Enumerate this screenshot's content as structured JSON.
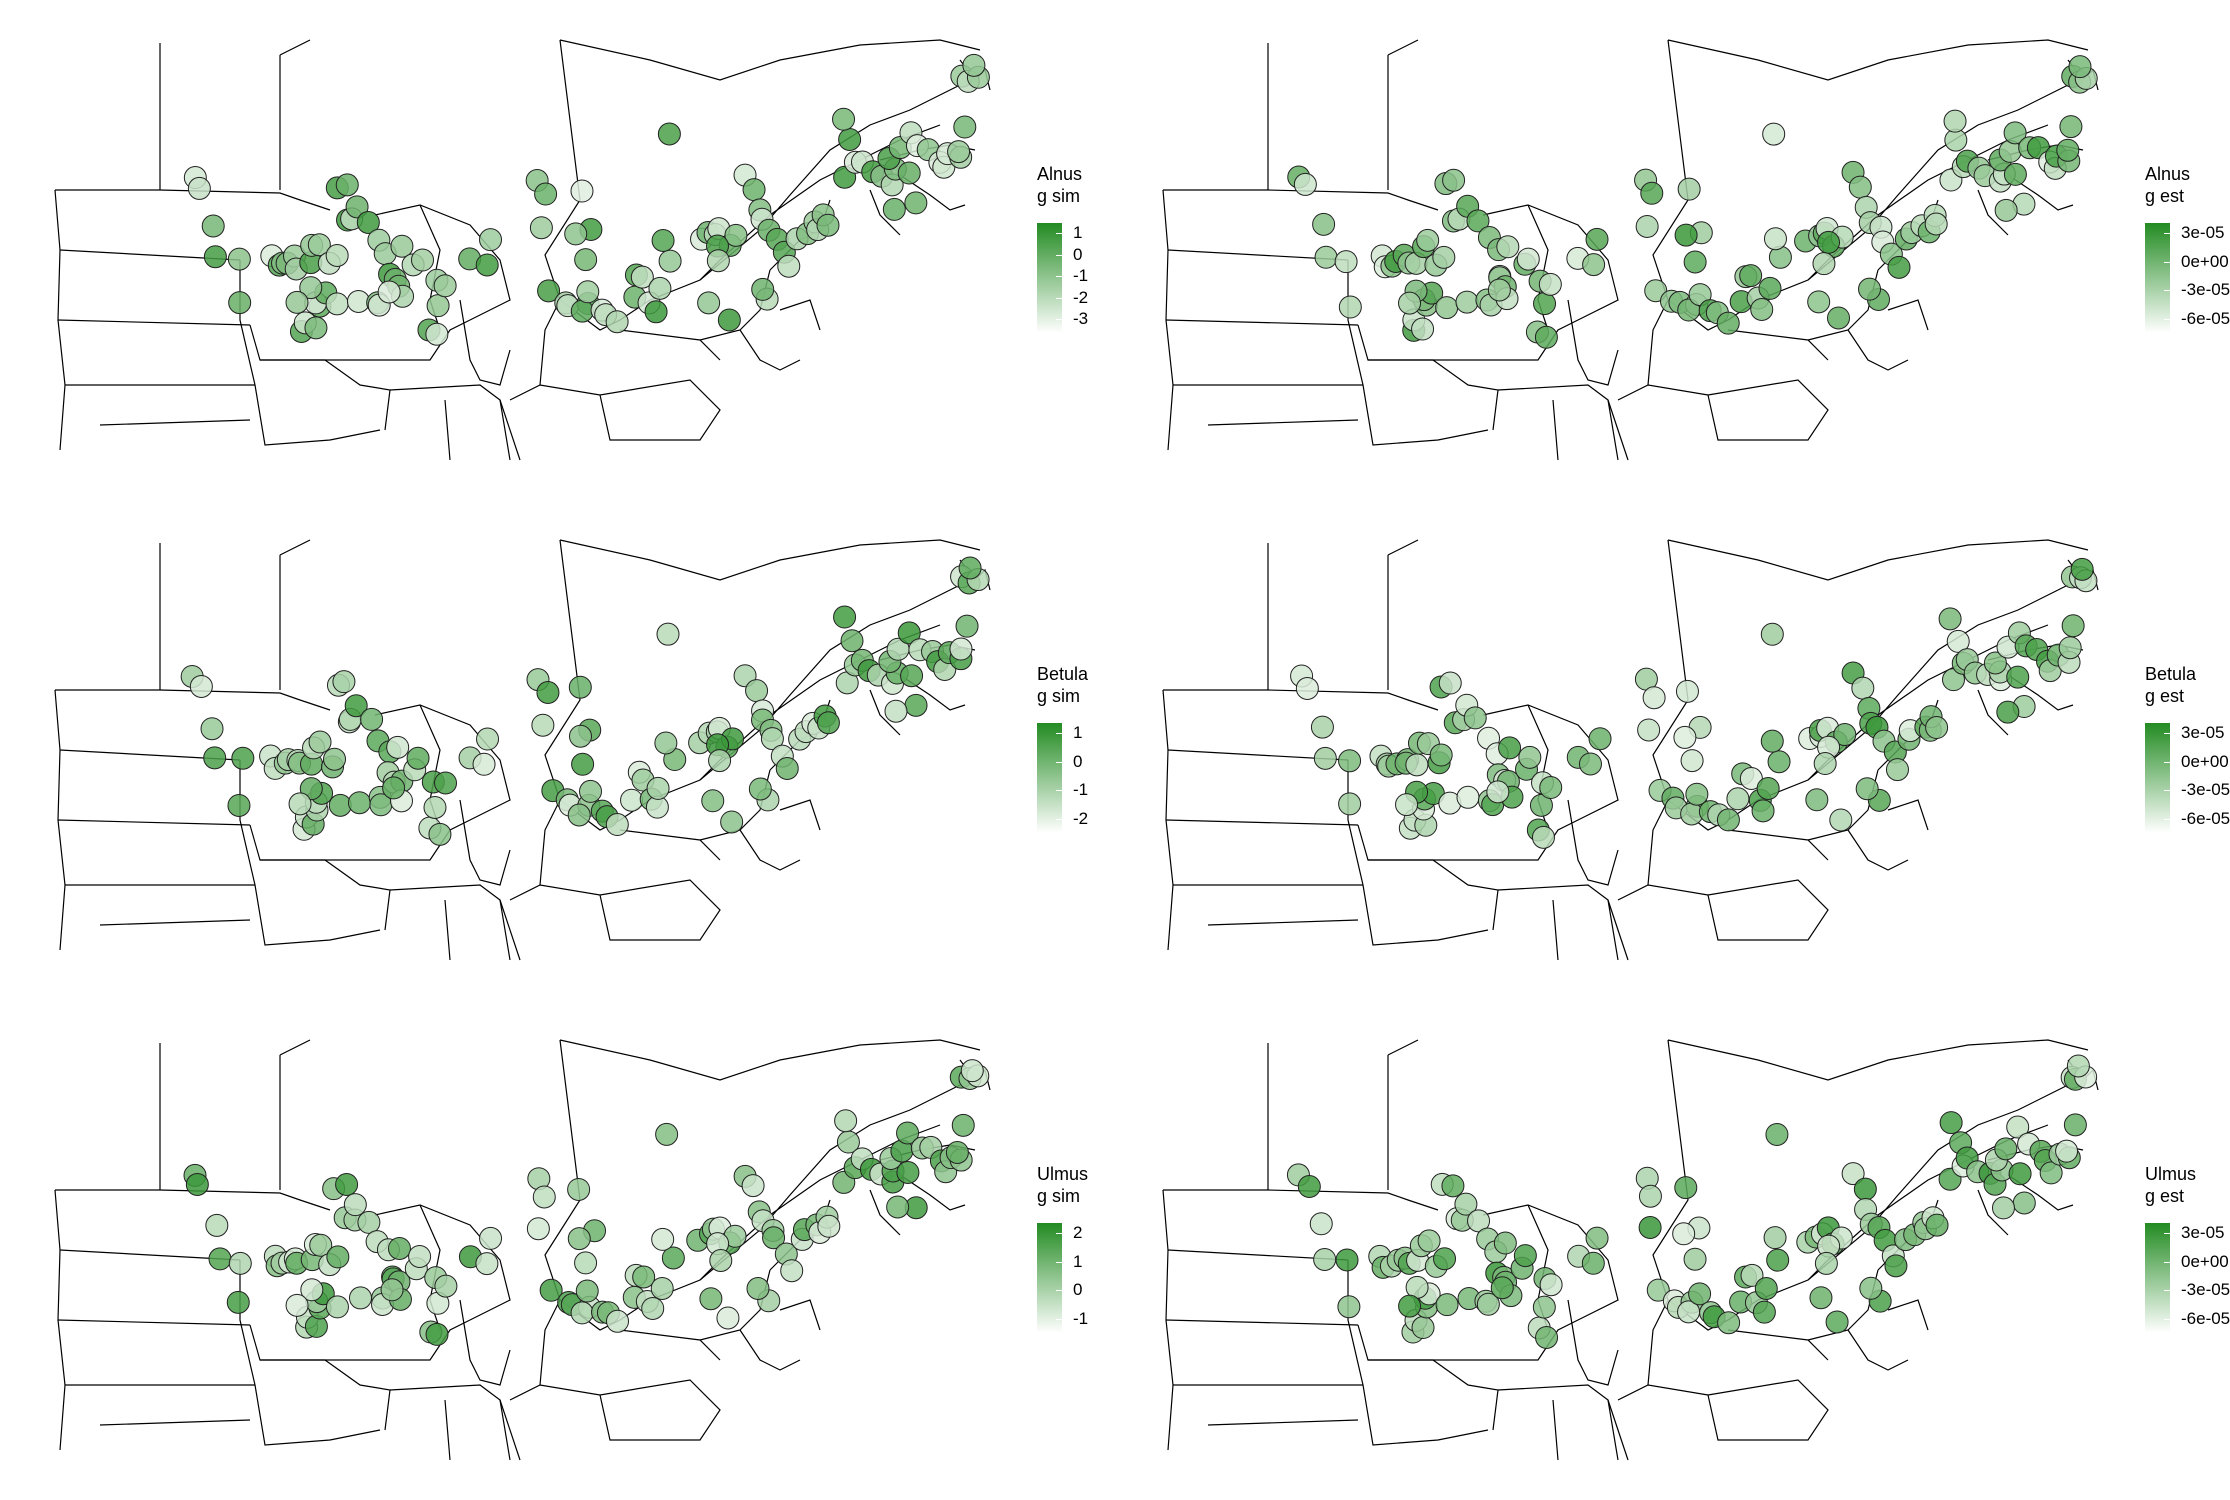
{
  "panels": [
    {
      "id": "alnus-sim",
      "title_line1": "Alnus",
      "title_line2": "g sim",
      "ticks": [
        "1",
        "0",
        "-1",
        "-2",
        "-3"
      ]
    },
    {
      "id": "alnus-est",
      "title_line1": "Alnus",
      "title_line2": "g est",
      "ticks": [
        "3e-05",
        "0e+00",
        "-3e-05",
        "-6e-05"
      ]
    },
    {
      "id": "betula-sim",
      "title_line1": "Betula",
      "title_line2": "g sim",
      "ticks": [
        "1",
        "0",
        "-1",
        "-2"
      ]
    },
    {
      "id": "betula-est",
      "title_line1": "Betula",
      "title_line2": "g est",
      "ticks": [
        "3e-05",
        "0e+00",
        "-3e-05",
        "-6e-05"
      ]
    },
    {
      "id": "ulmus-sim",
      "title_line1": "Ulmus",
      "title_line2": "g sim",
      "ticks": [
        "2",
        "1",
        "0",
        "-1"
      ]
    },
    {
      "id": "ulmus-est",
      "title_line1": "Ulmus",
      "title_line2": "g est",
      "ticks": [
        "3e-05",
        "0e+00",
        "-3e-05",
        "-6e-05"
      ]
    }
  ],
  "colors": {
    "high": "#238b22",
    "low": "#ffffff",
    "boundary": "#000000",
    "point_outline": "#222222"
  }
}
